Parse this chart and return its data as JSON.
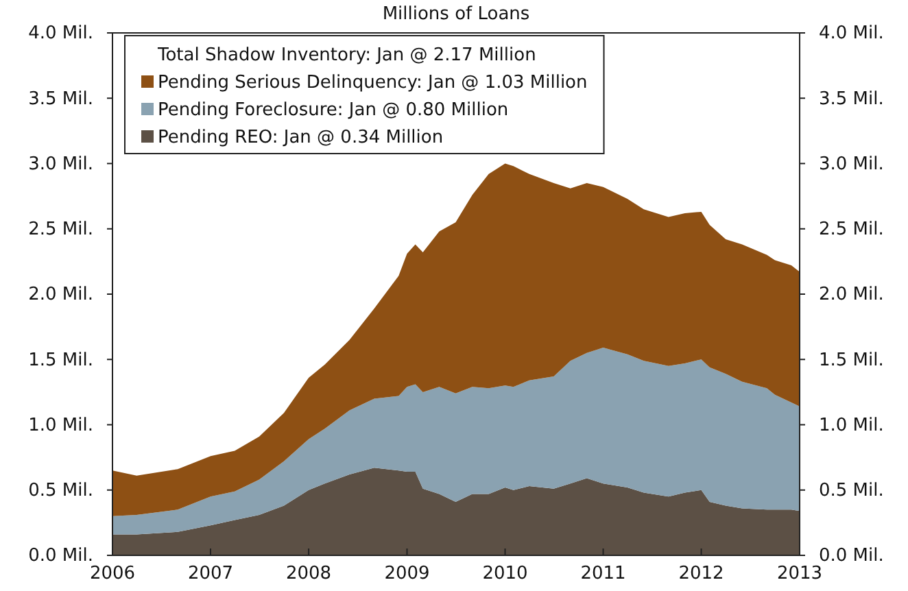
{
  "chart_data": {
    "type": "area",
    "stacked": true,
    "title": "Millions of Loans",
    "legend_title": "Total Shadow Inventory: Jan @ 2.17 Million",
    "legend": "top left",
    "grid": false,
    "x": [
      "2006-01",
      "2006-04",
      "2006-09",
      "2007-01",
      "2007-04",
      "2007-07",
      "2007-10",
      "2008-01",
      "2008-03",
      "2008-06",
      "2008-09",
      "2008-12",
      "2009-01",
      "2009-02",
      "2009-03",
      "2009-05",
      "2009-07",
      "2009-09",
      "2009-11",
      "2010-01",
      "2010-02",
      "2010-04",
      "2010-07",
      "2010-09",
      "2010-11",
      "2011-01",
      "2011-04",
      "2011-06",
      "2011-09",
      "2011-11",
      "2012-01",
      "2012-02",
      "2012-04",
      "2012-06",
      "2012-09",
      "2012-10",
      "2012-12",
      "2013-01"
    ],
    "series": [
      {
        "name": "Pending REO: Jan @ 0.34 Million",
        "color": "#5c5045",
        "values": [
          0.16,
          0.16,
          0.18,
          0.23,
          0.27,
          0.31,
          0.38,
          0.5,
          0.55,
          0.62,
          0.67,
          0.65,
          0.64,
          0.64,
          0.51,
          0.47,
          0.41,
          0.47,
          0.47,
          0.52,
          0.5,
          0.53,
          0.51,
          0.55,
          0.59,
          0.55,
          0.52,
          0.48,
          0.45,
          0.48,
          0.5,
          0.41,
          0.38,
          0.36,
          0.35,
          0.35,
          0.35,
          0.34
        ]
      },
      {
        "name": "Pending Foreclosure: Jan @ 0.80 Million",
        "color": "#8aa2b1",
        "values": [
          0.14,
          0.15,
          0.17,
          0.22,
          0.22,
          0.27,
          0.34,
          0.39,
          0.42,
          0.49,
          0.53,
          0.57,
          0.65,
          0.67,
          0.74,
          0.82,
          0.83,
          0.82,
          0.81,
          0.78,
          0.79,
          0.81,
          0.86,
          0.94,
          0.96,
          1.04,
          1.02,
          1.01,
          1.0,
          0.99,
          1.0,
          1.03,
          1.01,
          0.97,
          0.93,
          0.88,
          0.82,
          0.8
        ]
      },
      {
        "name": "Pending Serious Delinquency: Jan @ 1.03 Million",
        "color": "#8e5014",
        "values": [
          0.35,
          0.3,
          0.31,
          0.31,
          0.31,
          0.33,
          0.37,
          0.47,
          0.49,
          0.54,
          0.69,
          0.92,
          1.02,
          1.07,
          1.07,
          1.19,
          1.31,
          1.47,
          1.64,
          1.7,
          1.69,
          1.58,
          1.48,
          1.32,
          1.3,
          1.23,
          1.19,
          1.16,
          1.14,
          1.15,
          1.13,
          1.09,
          1.03,
          1.05,
          1.02,
          1.03,
          1.05,
          1.03
        ]
      }
    ],
    "xlim": [
      "2006",
      "2013"
    ],
    "xticks": [
      "2006",
      "2007",
      "2008",
      "2009",
      "2010",
      "2011",
      "2012",
      "2013"
    ],
    "ylim": [
      0,
      4
    ],
    "yticks": [
      {
        "value": 0,
        "label": "0.0 Mil."
      },
      {
        "value": 0.5,
        "label": "0.5 Mil."
      },
      {
        "value": 1,
        "label": "1.0 Mil."
      },
      {
        "value": 1.5,
        "label": "1.5 Mil."
      },
      {
        "value": 2,
        "label": "2.0 Mil."
      },
      {
        "value": 2.5,
        "label": "2.5 Mil."
      },
      {
        "value": 3,
        "label": "3.0 Mil."
      },
      {
        "value": 3.5,
        "label": "3.5 Mil."
      },
      {
        "value": 4,
        "label": "4.0 Mil."
      }
    ],
    "y2lim": [
      0,
      4
    ],
    "y2ticks": [
      {
        "value": 0,
        "label": "0.0 Mil."
      },
      {
        "value": 0.5,
        "label": "0.5 Mil."
      },
      {
        "value": 1,
        "label": "1.0 Mil."
      },
      {
        "value": 1.5,
        "label": "1.5 Mil."
      },
      {
        "value": 2,
        "label": "2.0 Mil."
      },
      {
        "value": 2.5,
        "label": "2.5 Mil."
      },
      {
        "value": 3,
        "label": "3.0 Mil."
      },
      {
        "value": 3.5,
        "label": "3.5 Mil."
      },
      {
        "value": 4,
        "label": "4.0 Mil."
      }
    ]
  }
}
